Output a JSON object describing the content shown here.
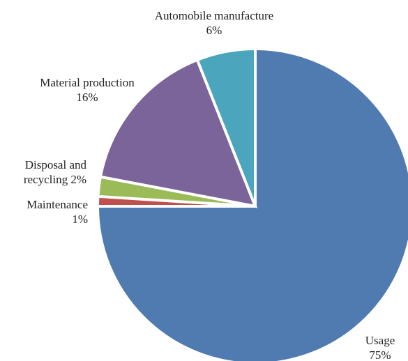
{
  "chart_data": {
    "type": "pie",
    "start_angle_deg": 0,
    "direction": "clockwise",
    "slices": [
      {
        "name": "Usage",
        "value": 75,
        "label_lines": [
          "Usage",
          "75%"
        ],
        "color": "#4f7bb1"
      },
      {
        "name": "Maintenance",
        "value": 1,
        "label_lines": [
          "Maintenance",
          "1%"
        ],
        "color": "#c0504d"
      },
      {
        "name": "Disposal and recycling",
        "value": 2,
        "label_lines": [
          "Disposal and",
          "recycling 2%"
        ],
        "color": "#9bbb59"
      },
      {
        "name": "Material production",
        "value": 16,
        "label_lines": [
          "Material production",
          "16%"
        ],
        "color": "#7a6499"
      },
      {
        "name": "Automobile manufacture",
        "value": 6,
        "label_lines": [
          "Automobile manufacture",
          "6%"
        ],
        "color": "#4ba6bd"
      }
    ]
  }
}
